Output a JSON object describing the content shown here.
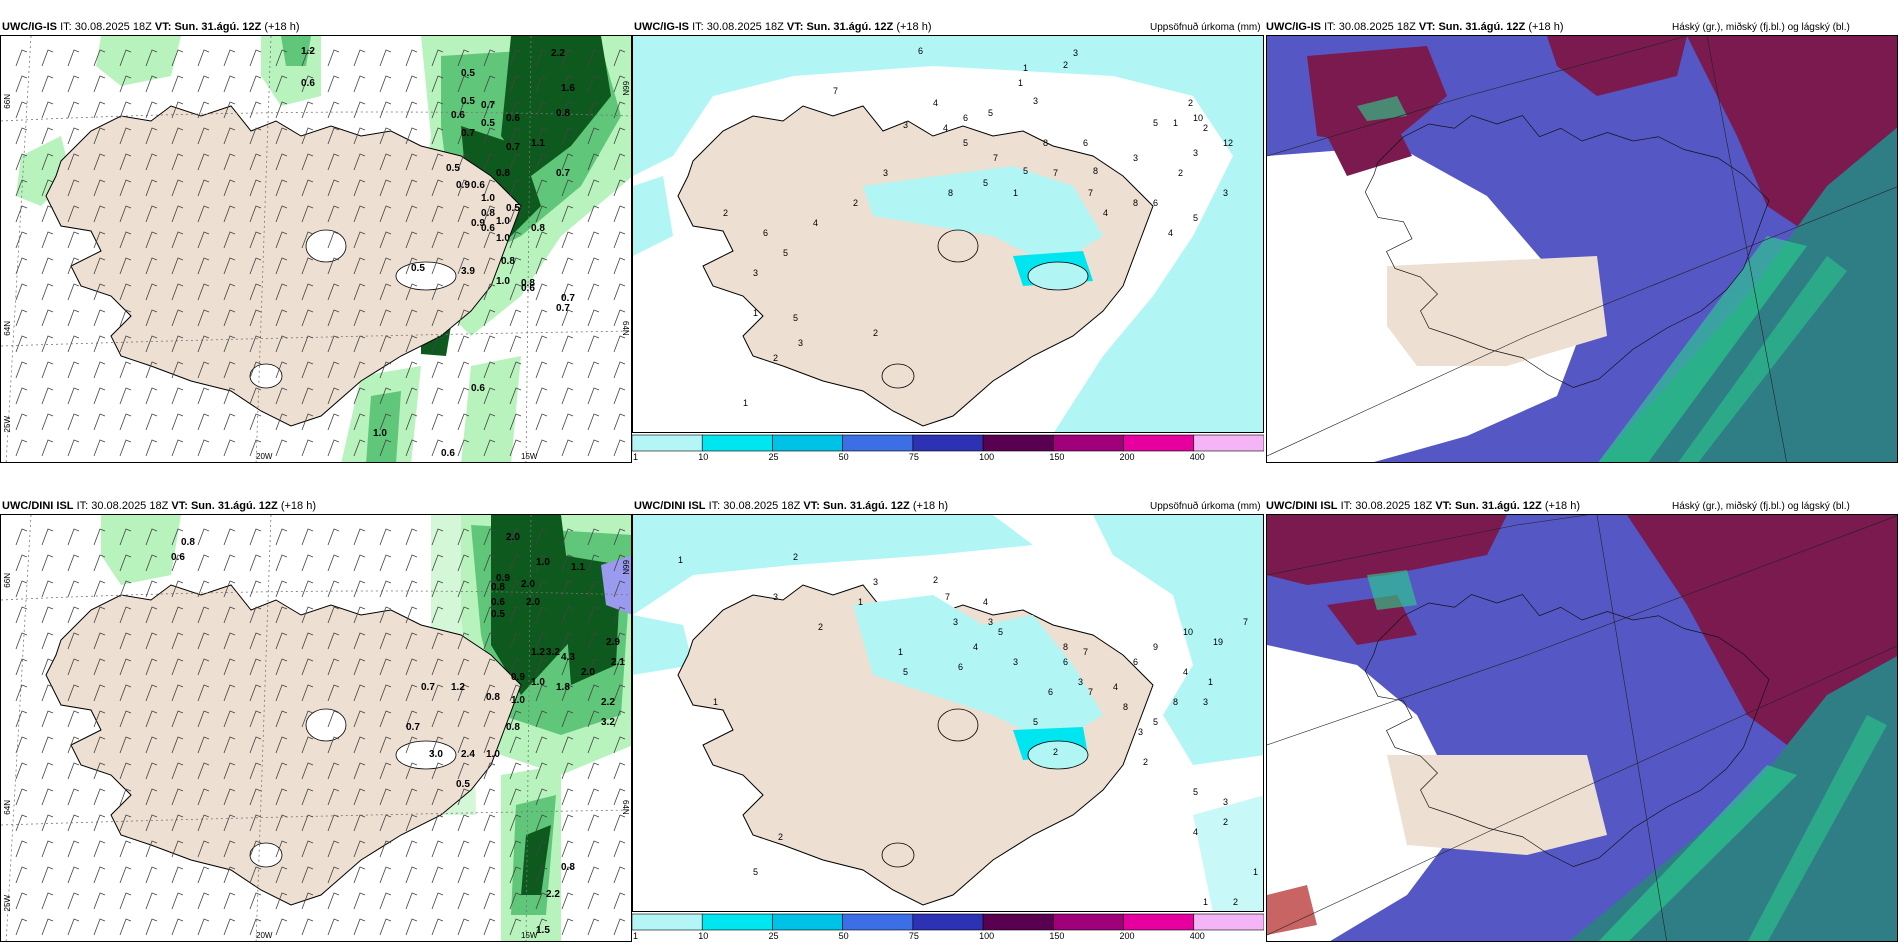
{
  "rows": [
    {
      "model": "UWC/IG-IS",
      "it_label": "IT:",
      "it_value": "30.08.2025 18Z",
      "vt_label": "VT:",
      "vt_value": "Sun. 31.ágú. 12Z",
      "lead": "(+18 h)",
      "panel2_right": "Uppsöfnuð úrkoma (mm)",
      "panel3_right": "Háský (gr.), miðský (fj.bl.) og lágský (bl.)",
      "p1_numbers": [
        "1.2",
        "0.6",
        "2.2",
        "0.5",
        "0.5",
        "0.7",
        "0.6",
        "1.6",
        "0.6",
        "0.5",
        "1.1",
        "0.7",
        "0.7",
        "0.8",
        "0.7",
        "0.5",
        "0.8",
        "0.9",
        "0.6",
        "1.0",
        "0.5",
        "0.8",
        "0.9",
        "1.0",
        "0.6",
        "0.8",
        "1.0",
        "0.8",
        "0.5",
        "3.9",
        "1.0",
        "0.8",
        "0.6",
        "0.7",
        "0.7",
        "0.6",
        "1.0",
        "0.6"
      ],
      "p2_numbers": [
        "6",
        "3",
        "1",
        "2",
        "1",
        "3",
        "7",
        "4",
        "6",
        "5",
        "3",
        "4",
        "5",
        "7",
        "8",
        "6",
        "5",
        "7",
        "8",
        "3",
        "2",
        "1",
        "2",
        "5",
        "3",
        "2",
        "8",
        "6",
        "5",
        "4",
        "10",
        "12",
        "3",
        "7",
        "4",
        "1",
        "5",
        "8",
        "3",
        "2",
        "4",
        "6",
        "5",
        "2",
        "3",
        "1",
        "5",
        "2",
        "3",
        "2",
        "1"
      ]
    },
    {
      "model": "UWC/DINI ISL",
      "it_label": "IT:",
      "it_value": "30.08.2025 18Z",
      "vt_label": "VT:",
      "vt_value": "Sun. 31.ágú. 12Z",
      "lead": "(+18 h)",
      "panel2_right": "Uppsöfnuð úrkoma (mm)",
      "panel3_right": "Háský (gr.), miðský (fj.bl.) og lágský (bl.)",
      "p1_numbers": [
        "0.8",
        "0.6",
        "2.0",
        "1.0",
        "1.1",
        "0.9",
        "0.8",
        "2.0",
        "0.6",
        "2.0",
        "0.5",
        "1.2",
        "2.9",
        "3.2",
        "4.3",
        "2.1",
        "2.0",
        "0.9",
        "1.0",
        "1.8",
        "0.7",
        "1.2",
        "0.8",
        "1.0",
        "2.2",
        "0.7",
        "3.0",
        "2.4",
        "1.0",
        "3.2",
        "0.8",
        "0.5",
        "0.8",
        "2.2",
        "1.5"
      ],
      "p2_numbers": [
        "2",
        "1",
        "3",
        "1",
        "2",
        "7",
        "4",
        "3",
        "5",
        "3",
        "3",
        "2",
        "1",
        "4",
        "3",
        "6",
        "5",
        "8",
        "7",
        "3",
        "4",
        "6",
        "7",
        "8",
        "5",
        "3",
        "2",
        "9",
        "6",
        "19",
        "10",
        "4",
        "1",
        "5",
        "3",
        "2",
        "6",
        "8",
        "7",
        "5",
        "3",
        "2",
        "4",
        "1",
        "2",
        "1",
        "5",
        "2",
        "1"
      ]
    }
  ],
  "axis_labels": {
    "lat66": "66N",
    "lat64": "64N",
    "lon20": "20W",
    "lon15": "15W",
    "lon25": "25W"
  },
  "colorbar": {
    "ticks": [
      "1",
      "10",
      "25",
      "50",
      "75",
      "100",
      "150",
      "200",
      "400"
    ],
    "colors": [
      "#b4f6f6",
      "#00e6f0",
      "#00c2e6",
      "#3c6ee6",
      "#2d32b4",
      "#5a0050",
      "#a0007a",
      "#e600a0",
      "#f5b4f5"
    ]
  },
  "colors": {
    "land": "#eddfd1",
    "precip_light": "#b8f2bc",
    "precip_mid": "#5fc67a",
    "precip_dark": "#0e5a1e",
    "accum_light": "#b2f5f5",
    "cloud_high": "#7a1a4e",
    "cloud_mid": "#5557c4",
    "cloud_low": "#2f7e86",
    "cloud_green": "#2ad48c"
  }
}
